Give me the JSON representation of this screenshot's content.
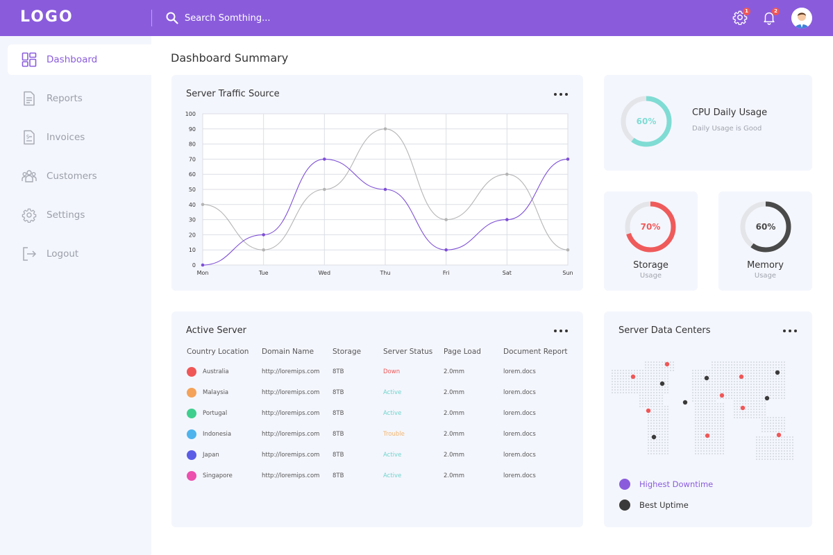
{
  "header": {
    "logo": "LOGO",
    "search_placeholder": "Search Somthing...",
    "settings_badge": "1",
    "notifications_badge": "2"
  },
  "sidebar": {
    "items": [
      {
        "label": "Dashboard",
        "icon": "dashboard-icon"
      },
      {
        "label": "Reports",
        "icon": "reports-icon"
      },
      {
        "label": "Invoices",
        "icon": "invoices-icon"
      },
      {
        "label": "Customers",
        "icon": "customers-icon"
      },
      {
        "label": "Settings",
        "icon": "settings-icon"
      },
      {
        "label": "Logout",
        "icon": "logout-icon"
      }
    ]
  },
  "page_title": "Dashboard Summary",
  "traffic": {
    "title": "Server Traffic Source"
  },
  "chart_data": {
    "type": "line",
    "title": "Server Traffic Source",
    "categories": [
      "Mon",
      "Tue",
      "Wed",
      "Thu",
      "Fri",
      "Sat",
      "Sun"
    ],
    "ylim": [
      0,
      100
    ],
    "yticks": [
      0,
      10,
      20,
      30,
      40,
      50,
      60,
      70,
      80,
      90,
      100
    ],
    "grid": true,
    "series": [
      {
        "values": [
          0,
          20,
          70,
          50,
          10,
          30,
          70
        ],
        "color": "#7e4fd6"
      },
      {
        "values": [
          40,
          10,
          50,
          90,
          30,
          60,
          10
        ],
        "color": "#b4b4b4"
      }
    ]
  },
  "cpu": {
    "value": 60,
    "label": "60%",
    "title": "CPU Daily Usage",
    "subtitle": "Daily Usage is Good",
    "color": "#7fdcd4"
  },
  "storage": {
    "value": 70,
    "label": "70%",
    "title": "Storage",
    "subtitle": "Usage",
    "color": "#ef5b5b"
  },
  "memory": {
    "value": 60,
    "label": "60%",
    "title": "Memory",
    "subtitle": "Usage",
    "color": "#4a4a4a"
  },
  "active_server": {
    "title": "Active Server",
    "columns": [
      "Country Location",
      "Domain Name",
      "Storage",
      "Server Status",
      "Page Load",
      "Document Report"
    ],
    "rows": [
      {
        "country": "Australia",
        "color": "#ef5757",
        "domain": "http://loremips.com",
        "storage": "8TB",
        "status": "Down",
        "status_color": "#ef5757",
        "load": "2.0mm",
        "doc": "lorem.docs"
      },
      {
        "country": "Malaysia",
        "color": "#f4a259",
        "domain": "http://loremips.com",
        "storage": "8TB",
        "status": "Active",
        "status_color": "#6fd3cb",
        "load": "2.0mm",
        "doc": "lorem.docs"
      },
      {
        "country": "Portugal",
        "color": "#3ecf8e",
        "domain": "http://loremips.com",
        "storage": "8TB",
        "status": "Active",
        "status_color": "#6fd3cb",
        "load": "2.0mm",
        "doc": "lorem.docs"
      },
      {
        "country": "Indonesia",
        "color": "#4fb4ec",
        "domain": "http://loremips.com",
        "storage": "8TB",
        "status": "Trouble",
        "status_color": "#f4b46a",
        "load": "2.0mm",
        "doc": "lorem.docs"
      },
      {
        "country": "Japan",
        "color": "#5b5ce6",
        "domain": "http://loremips.com",
        "storage": "8TB",
        "status": "Active",
        "status_color": "#6fd3cb",
        "load": "2.0mm",
        "doc": "lorem.docs"
      },
      {
        "country": "Singapore",
        "color": "#ec4fae",
        "domain": "http://loremips.com",
        "storage": "8TB",
        "status": "Active",
        "status_color": "#6fd3cb",
        "load": "2.0mm",
        "doc": "lorem.docs"
      }
    ]
  },
  "data_centers": {
    "title": "Server Data Centers",
    "legend": [
      {
        "label": "Highest Downtime",
        "color": "#8a5cdc"
      },
      {
        "label": "Best Uptime",
        "color": "#3a3a3a"
      }
    ]
  }
}
